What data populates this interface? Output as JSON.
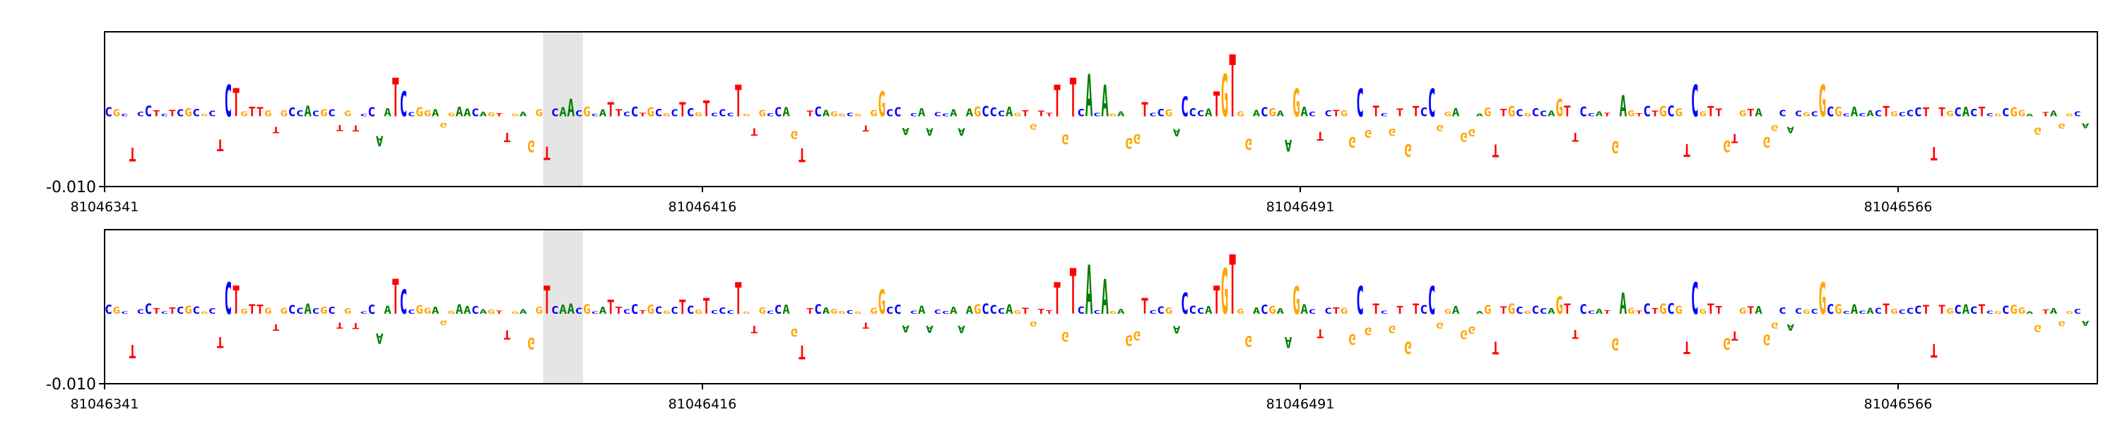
{
  "chart_data": [
    {
      "type": "sequence-logo",
      "title": "",
      "xlabel": "",
      "ylabel": "",
      "x_start": 81046341,
      "length": 250,
      "xticks": [
        81046341,
        81046416,
        81046491,
        81046566
      ],
      "xtick_labels": [
        "81046341",
        "81046416",
        "81046491",
        "81046566"
      ],
      "yticks": [
        -0.01
      ],
      "ytick_labels": [
        "-0.010"
      ],
      "ylim": [
        -0.01,
        0.012
      ],
      "highlight": [
        81046396,
        81046401
      ],
      "sequence": "CGCTCCTCTCGCGCTCTGTTGTGCCACGCTGTCCAATCCGGAGGAACAGTTGAGGTCAACGCATTCCTGCGCTCGTCCCTGTGCCAGTTCAGGCGTGGCCACAACCAAAGCCCAGTGTTTGTCACAGAGGTCCGACCCATGTGGACGAAGACTCTGGCGTCGTGTCCGGAGGAGTTGCGCCAGTTCCATGAGTCTGCGTCGTTGTGTAGGCACGCGCGCACACTGCCCTTTGCACTCGCGGAGTAGGCA",
      "palette": {
        "A": "#008000",
        "C": "#0000ff",
        "G": "#ffa500",
        "T": "#ff0000"
      },
      "tracks": [
        {
          "name": "",
          "peaks": [
            [
              81046356,
              0.0045
            ],
            [
              81046357,
              0.004
            ],
            [
              81046377,
              0.0055
            ],
            [
              81046378,
              0.0035
            ],
            [
              81046399,
              0.0025
            ],
            [
              81046404,
              0.002
            ],
            [
              81046413,
              0.002
            ],
            [
              81046416,
              0.0022
            ],
            [
              81046420,
              0.0045
            ],
            [
              81046438,
              0.0035
            ],
            [
              81046460,
              0.0045
            ],
            [
              81046462,
              0.0055
            ],
            [
              81046464,
              0.006
            ],
            [
              81046466,
              0.0045
            ],
            [
              81046471,
              0.002
            ],
            [
              81046476,
              0.0028
            ],
            [
              81046480,
              0.0035
            ],
            [
              81046481,
              0.006
            ],
            [
              81046482,
              0.0088
            ],
            [
              81046490,
              0.004
            ],
            [
              81046498,
              0.004
            ],
            [
              81046507,
              0.004
            ],
            [
              81046523,
              0.0025
            ],
            [
              81046531,
              0.003
            ],
            [
              81046540,
              0.0045
            ],
            [
              81046556,
              0.0045
            ]
          ]
        },
        {
          "name": "",
          "peaks": [
            [
              81046356,
              0.0045
            ],
            [
              81046357,
              0.004
            ],
            [
              81046377,
              0.005
            ],
            [
              81046378,
              0.0035
            ],
            [
              81046396,
              0.004
            ],
            [
              81046404,
              0.002
            ],
            [
              81046413,
              0.002
            ],
            [
              81046416,
              0.0022
            ],
            [
              81046420,
              0.0045
            ],
            [
              81046438,
              0.0035
            ],
            [
              81046460,
              0.0045
            ],
            [
              81046462,
              0.0065
            ],
            [
              81046464,
              0.007
            ],
            [
              81046466,
              0.005
            ],
            [
              81046471,
              0.0022
            ],
            [
              81046476,
              0.003
            ],
            [
              81046480,
              0.004
            ],
            [
              81046481,
              0.0065
            ],
            [
              81046482,
              0.0085
            ],
            [
              81046490,
              0.004
            ],
            [
              81046498,
              0.004
            ],
            [
              81046507,
              0.004
            ],
            [
              81046523,
              0.0025
            ],
            [
              81046531,
              0.003
            ],
            [
              81046540,
              0.0045
            ],
            [
              81046556,
              0.0045
            ]
          ]
        }
      ]
    }
  ]
}
